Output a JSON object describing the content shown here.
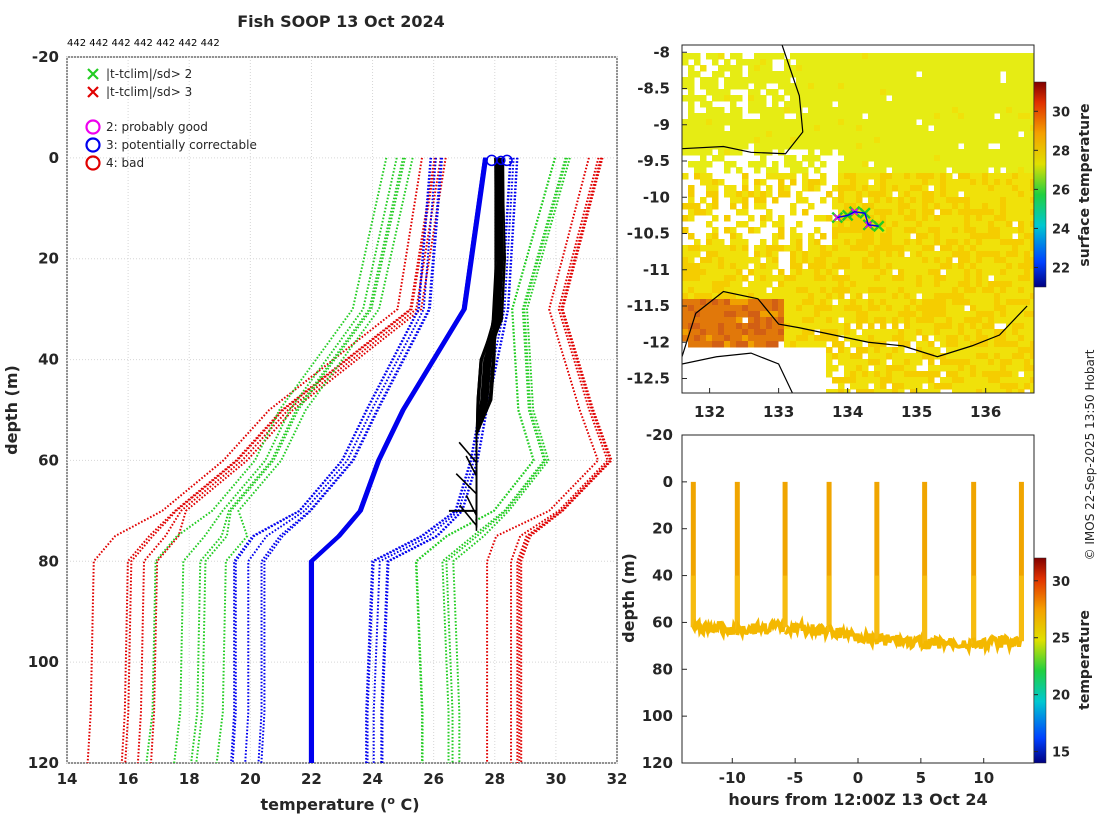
{
  "title": "Fish SOOP 13 Oct 2024",
  "id_row": "442 442 442 442 442 442 442",
  "copyright": "© IMOS 22-Sep-2025 13:50 Hobart",
  "colors": {
    "red": "#e00000",
    "green": "#22cc22",
    "blue": "#0000ee",
    "black": "#000000",
    "magenta": "#ee00ee",
    "profile": "#f5b400"
  },
  "chart_data": [
    {
      "type": "line",
      "name": "profile",
      "xlabel": "temperature (",
      "xlabel_sup": "o",
      "xlabel_end": " C)",
      "ylabel": "depth (m)",
      "xlim": [
        14,
        32
      ],
      "ylim": [
        -20,
        120
      ],
      "xticks": [
        "14",
        "16",
        "18",
        "20",
        "22",
        "24",
        "26",
        "28",
        "30",
        "32"
      ],
      "yticks": [
        "-20",
        "0",
        "20",
        "40",
        "60",
        "80",
        "100",
        "120"
      ],
      "legend": [
        {
          "marker": "x",
          "color": "green",
          "label": "|t-tclim|/sd> 2"
        },
        {
          "marker": "x",
          "color": "red",
          "label": "|t-tclim|/sd> 3"
        },
        {
          "marker": "o",
          "color": "magenta",
          "label": "2: probably good"
        },
        {
          "marker": "o",
          "color": "blue",
          "label": "3: potentially correctable"
        },
        {
          "marker": "o",
          "color": "red",
          "label": "4: bad"
        }
      ],
      "depths": [
        0,
        30,
        50,
        60,
        70,
        75,
        80,
        110,
        120
      ],
      "series": [
        {
          "name": "clim -3sd",
          "color": "red",
          "style": "dotted",
          "temps": [
            26.0,
            25.2,
            21.0,
            19.5,
            17.5,
            16.6,
            15.9,
            15.8,
            15.7
          ],
          "spread": 1.3
        },
        {
          "name": "clim -2sd",
          "color": "green",
          "style": "dotted",
          "temps": [
            24.9,
            23.8,
            21.4,
            20.6,
            19.2,
            18.8,
            18.1,
            18.0,
            17.8
          ],
          "spread": 1.3
        },
        {
          "name": "clim -1sd",
          "color": "blue",
          "style": "dotted",
          "temps": [
            26.1,
            25.7,
            24.0,
            23.2,
            21.8,
            20.6,
            20.0,
            20.0,
            19.9
          ],
          "spread": 0.9
        },
        {
          "name": "clim mean",
          "color": "blue",
          "style": "solid",
          "temps": [
            27.7,
            27.0,
            25.0,
            24.2,
            23.6,
            22.9,
            22.0,
            22.0,
            22.0
          ],
          "spread": 0.0
        },
        {
          "name": "clim +1sd",
          "color": "blue",
          "style": "dotted",
          "temps": [
            28.6,
            28.3,
            27.6,
            27.3,
            26.8,
            25.8,
            24.2,
            24.0,
            24.0
          ],
          "spread": 0.3
        },
        {
          "name": "clim +2sd",
          "color": "green",
          "style": "dotted",
          "temps": [
            30.2,
            28.8,
            29.0,
            29.5,
            28.2,
            27.0,
            26.0,
            26.2,
            26.2
          ],
          "spread": 0.6
        },
        {
          "name": "clim +3sd",
          "color": "red",
          "style": "dotted",
          "temps": [
            31.3,
            30.0,
            31.0,
            31.6,
            30.0,
            28.6,
            28.3,
            28.3,
            28.3
          ],
          "spread": 0.6
        }
      ],
      "observed": {
        "temp_range": [
          27.4,
          28.3
        ],
        "max_depth": 74
      }
    },
    {
      "type": "heatmap",
      "name": "surface map",
      "xticks": [
        "132",
        "133",
        "134",
        "135",
        "136"
      ],
      "yticks": [
        "-8",
        "-8.5",
        "-9",
        "-9.5",
        "-10",
        "-10.5",
        "-11",
        "-11.5",
        "-12",
        "-12.5"
      ],
      "xlim": [
        131.6,
        136.7
      ],
      "ylim": [
        -12.7,
        -7.9
      ],
      "colorbar": {
        "label": "surface temperature",
        "ticks": [
          "22",
          "24",
          "26",
          "28",
          "30"
        ],
        "range": [
          21,
          31.5
        ]
      },
      "track": [
        [
          133.85,
          -10.28
        ],
        [
          134.0,
          -10.25
        ],
        [
          134.1,
          -10.2
        ],
        [
          134.25,
          -10.22
        ],
        [
          134.3,
          -10.38
        ],
        [
          134.45,
          -10.4
        ]
      ]
    },
    {
      "type": "heatmap",
      "name": "section",
      "xlabel": "hours from 12:00Z 13 Oct 24",
      "ylabel": "depth (m)",
      "xlim": [
        -14,
        14
      ],
      "ylim": [
        -20,
        120
      ],
      "xticks": [
        "-10",
        "-5",
        "0",
        "5",
        "10"
      ],
      "yticks": [
        "-20",
        "0",
        "20",
        "40",
        "60",
        "80",
        "100",
        "120"
      ],
      "colorbar": {
        "label": "temperature",
        "ticks": [
          "15",
          "20",
          "25",
          "30"
        ],
        "range": [
          14,
          32
        ]
      },
      "profile_hours": [
        -13.1,
        -9.6,
        -5.8,
        -2.3,
        1.5,
        5.3,
        9.2,
        13.0
      ],
      "bottom_depths": [
        62,
        63,
        62,
        64,
        67,
        69,
        69,
        68
      ]
    }
  ]
}
